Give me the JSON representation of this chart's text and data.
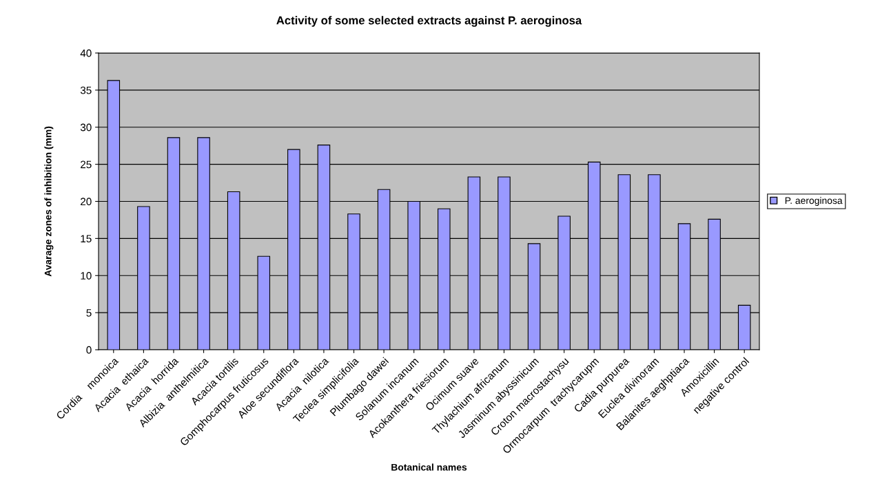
{
  "chart_data": {
    "type": "bar",
    "title": "Activity of some selected extracts against P. aeroginosa",
    "xlabel": "Botanical names",
    "ylabel": "Avarage zones of inhibition (mm)",
    "categories": [
      "Cordia    monoica",
      "Acacia  ethaica",
      "Acacia  horrida",
      "Albizia  anthelmitica",
      "Acacia tortilis",
      "Gomphocarpus fruticosus",
      "Aloe secundiflora",
      "Acacia  nilotica",
      "Teclea simplicifolia",
      "Plumbago dawei",
      "Solanum incanum",
      "Acokanthera friesiorum",
      "Ocimum suave",
      "Thylachium africanum",
      "Jasminum abyssinicum",
      "Croton macrostachysu",
      "Ormocarpum  trachycarupm",
      "Cadia purpurea",
      "Euclea divinoram",
      "Balanites aeghptiaca",
      "Amoxicillin",
      "negative control"
    ],
    "series": [
      {
        "name": "P. aeroginosa",
        "color": "#9999ff",
        "values": [
          36.3,
          19.3,
          28.6,
          28.6,
          21.3,
          12.6,
          27,
          27.6,
          18.3,
          21.6,
          20,
          19,
          23.3,
          23.3,
          14.3,
          18,
          25.3,
          23.6,
          23.6,
          17,
          17.6,
          6
        ]
      }
    ],
    "ylim": [
      0,
      40
    ],
    "yticks": [
      0,
      5,
      10,
      15,
      20,
      25,
      30,
      35,
      40
    ],
    "grid": "y",
    "legend": "right"
  }
}
